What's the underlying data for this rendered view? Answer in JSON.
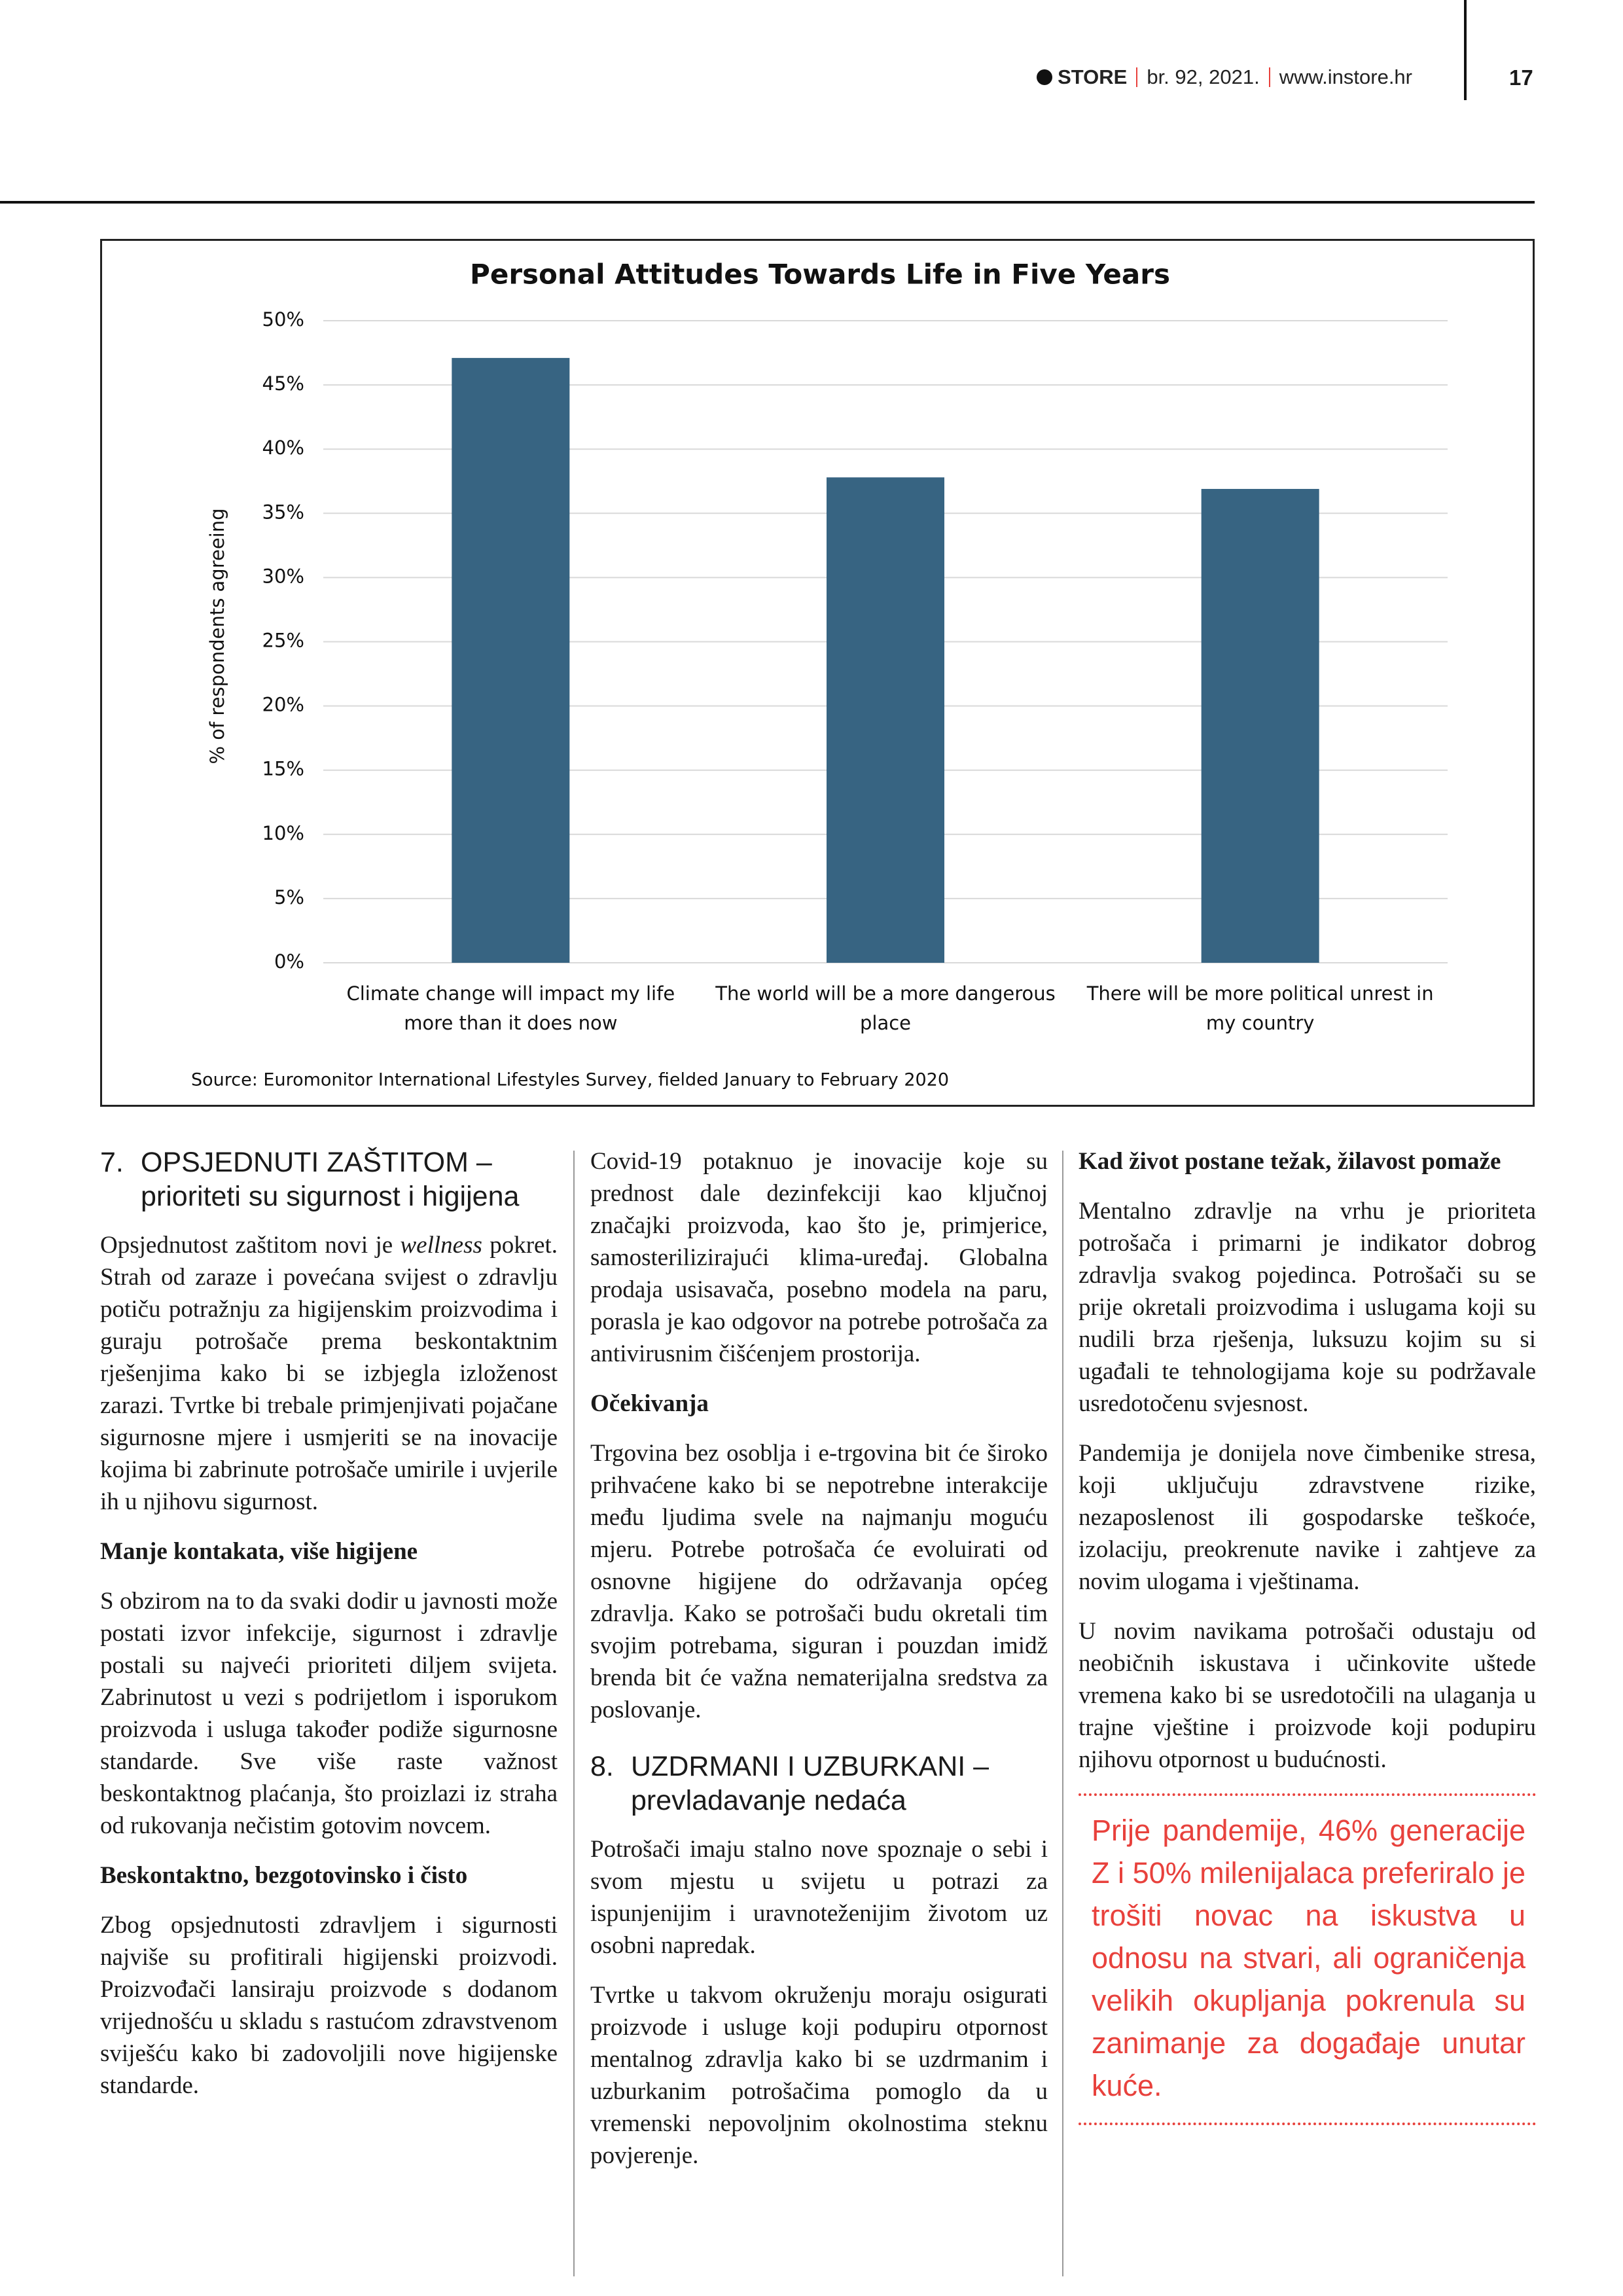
{
  "header": {
    "logo": "STORE",
    "issue": "br. 92, 2021.",
    "website": "www.instore.hr",
    "page_number": "17"
  },
  "chart_data": {
    "type": "bar",
    "title": "Personal Attitudes Towards Life in Five Years",
    "y_label": "% of respondents agreeing",
    "categories": [
      "Climate change will impact my life more than it does now",
      "The world will be a more dangerous place",
      "There will be more political unrest in my country"
    ],
    "values": [
      47.1,
      37.8,
      36.9
    ],
    "color": "#376482",
    "ylim": [
      0,
      50
    ],
    "yticks": [
      {
        "value": 0,
        "label": "0%"
      },
      {
        "value": 5,
        "label": "5%"
      },
      {
        "value": 10,
        "label": "10%"
      },
      {
        "value": 15,
        "label": "15%"
      },
      {
        "value": 20,
        "label": "20%"
      },
      {
        "value": 25,
        "label": "25%"
      },
      {
        "value": 30,
        "label": "30%"
      },
      {
        "value": 35,
        "label": "35%"
      },
      {
        "value": 40,
        "label": "40%"
      },
      {
        "value": 45,
        "label": "45%"
      },
      {
        "value": 50,
        "label": "50%"
      }
    ],
    "grid": true,
    "source": "Source: Euromonitor International Lifestyles Survey, fielded January to February 2020"
  },
  "article": {
    "section_7": {
      "number": "7.",
      "title": "OPSJEDNUTI ZAŠTITOM – prioriteti su sigurnost i higijena",
      "intro": [
        "Opsjednutost zaštitom novi je ",
        "wellness",
        " pokret. Strah od zaraze i povećana svijest o zdravlju potiču potražnju za higijenskim proizvodima i guraju potrošače prema beskontaktnim rješenjima kako bi se izbjegla izloženost zarazi. Tvrtke bi trebale primjenjivati pojačane sigurnosne mjere i usmjeriti se na inovacije kojima bi zabrinute potrošače umirile i uvjerile ih u njihovu sigurnost."
      ],
      "subsections": [
        {
          "title": "Manje kontakata, više higijene",
          "paragraphs": [
            "S obzirom na to da svaki dodir u javnosti može postati izvor infekcije, sigurnost i zdravlje postali su najveći prioriteti diljem svijeta. Zabrinutost u vezi s podrijetlom i isporukom proizvoda i usluga također podiže sigurnosne standarde. Sve više raste važnost beskontaktnog plaćanja, što proizlazi iz straha od rukovanja nečistim gotovim novcem."
          ]
        },
        {
          "title": "Beskontaktno, bezgotovinsko i čisto",
          "paragraphs": [
            "Zbog opsjednutosti zdravljem i sigurnosti najviše su profitirali higijenski proizvodi. Proizvođači lansiraju proizvode s dodanom vrijednošću u skladu s rastućom zdravstvenom sviješću kako bi zadovoljili nove higijenske standarde.",
            "Covid-19 potaknuo je inovacije koje su prednost dale dezinfekciji kao ključnoj značajki proizvoda, kao što je, primjerice, samosterilizirajući klima-uređaj. Globalna prodaja usisavača, posebno modela na paru, porasla je kao odgovor na potrebe potrošača za antivirusnim čišćenjem prostorija."
          ]
        },
        {
          "title": "Očekivanja",
          "paragraphs": [
            "Trgovina bez osoblja i e-trgovina bit će široko prihvaćene kako bi se nepotrebne interakcije među ljudima svele na najmanju moguću mjeru. Potrebe potrošača će evoluirati od osnovne higijene do održavanja općeg zdravlja. Kako se potrošači budu okretali tim svojim potrebama, siguran i pouzdan imidž brenda bit će važna nematerijalna sredstva za poslovanje."
          ]
        }
      ]
    },
    "section_8": {
      "number": "8.",
      "title": "UZDRMANI I UZBURKANI – prevladavanje nedaća",
      "intro": [
        "Potrošači imaju stalno nove spoznaje o sebi i svom mjestu u svijetu u potrazi za ispunjenijim i uravnoteženijim životom uz osobni napredak.",
        "Tvrtke u takvom okruženju moraju osigurati proizvode i usluge koji podupiru otpornost mentalnog zdravlja kako bi se uzdrmanim i uzburkanim potrošačima pomoglo da u vremenski nepovoljnim okolnostima steknu povjerenje."
      ],
      "subsections": [
        {
          "title": "Kad život postane težak, žilavost pomaže",
          "paragraphs": [
            "Mentalno zdravlje na vrhu je prioriteta potrošača i primarni je indikator dobrog zdravlja svakog pojedinca. Potrošači su se prije okretali proizvodima i uslugama koji su nudili brza rješenja, luksuzu kojim su si ugađali te tehnologijama koje su podržavale usredotočenu svjesnost.",
            "Pandemija je donijela nove čimbenike stresa, koji uključuju zdravstvene rizike, nezaposlenost ili gospodarske teškoće, izolaciju, preokrenute navike i zahtjeve za novim ulogama i vještinama.",
            "U novim navikama potrošači odustaju od neobičnih iskustava i učinkovite uštede vremena kako bi se usredotočili na ulaganja u trajne vještine i proizvode koji podupiru njihovu otpornost u budućnosti."
          ]
        }
      ]
    },
    "callout": "Prije pandemije, 46% generacije Z i 50% milenijalaca preferiralo je trošiti novac na iskustva u odnosu na stvari, ali ograničenja velikih okupljanja pokrenula su zanimanje za događaje unutar kuće."
  }
}
